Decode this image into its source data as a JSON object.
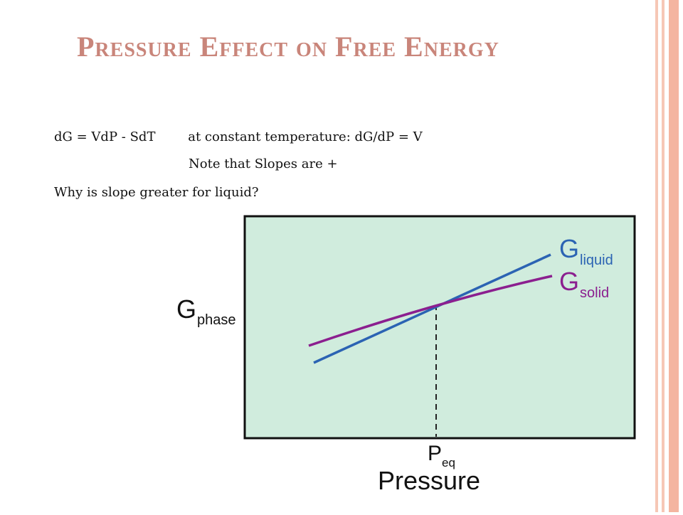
{
  "slide": {
    "title": "Pressure Effect on Free Energy",
    "lines": [
      "dG = VdP - SdT        at constant temperature: dG/dP = V",
      "Note that Slopes are +",
      "Why is slope greater for liquid?"
    ]
  },
  "diagram": {
    "y_axis_label_main": "G",
    "y_axis_label_sub": "phase",
    "x_axis_label": "Pressure",
    "eq_label_main": "P",
    "eq_label_sub": "eq",
    "liquid_label_main": "G",
    "liquid_label_sub": "liquid",
    "solid_label_main": "G",
    "solid_label_sub": "solid",
    "colors": {
      "panel": "#d0ecdd",
      "liquid": "#2b63b3",
      "solid": "#8b1f8f",
      "title": "#c9857a",
      "frame": "#f4b8a4"
    }
  }
}
